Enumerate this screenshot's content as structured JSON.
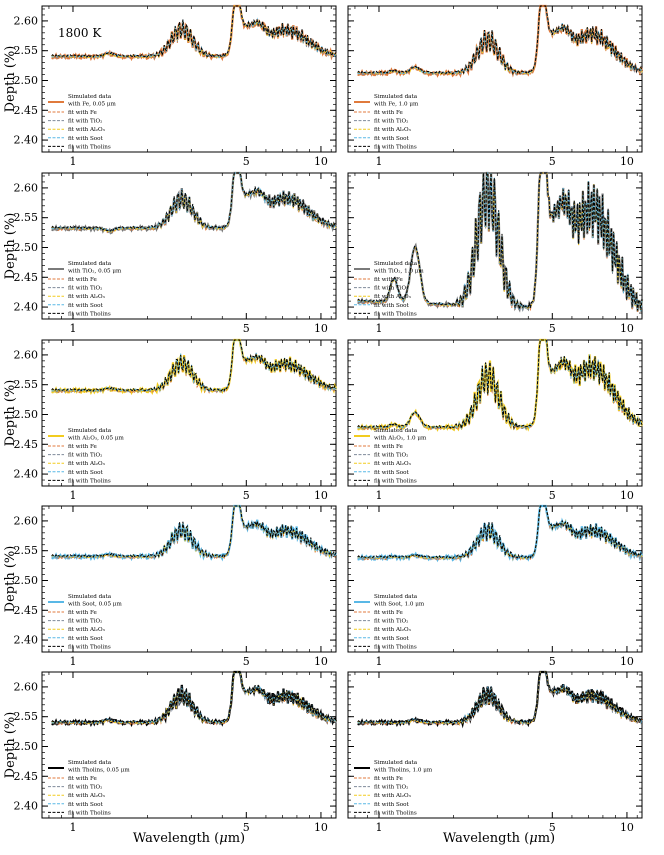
{
  "figure": {
    "annotation": "1800 K",
    "xlabel": "Wavelength (μm)",
    "ylabel": "Depth (%)",
    "x_ticks": [
      1,
      5,
      10
    ],
    "x_tick_labels": [
      "1",
      "5",
      "10"
    ],
    "y_ticks": [
      2.4,
      2.45,
      2.5,
      2.55,
      2.6
    ],
    "y_tick_labels": [
      "2.40",
      "2.45",
      "2.50",
      "2.55",
      "2.60"
    ],
    "xlim": [
      0.75,
      11.5
    ],
    "ylim": [
      2.38,
      2.625
    ],
    "xscale": "log"
  },
  "colors": {
    "fe": "#e07a3c",
    "tio2": "#7f8a9a",
    "al2o3": "#f2cc1f",
    "soot": "#59b8e6",
    "tholins": "#000000",
    "gray": "#7a7a7a"
  },
  "chart_data": [
    {
      "type": "line",
      "panel": "Fe 0.05 um",
      "legend_title": [
        "Simulated data",
        "with Fe, 0.05 μm"
      ],
      "data_color": "fe",
      "base_depth": 2.54,
      "features": [
        0.0,
        0.005,
        0.045,
        0.078,
        0.044
      ],
      "series_names": [
        "fit with Fe",
        "fit with TiO₂",
        "fit with Al₂O₃",
        "fit with Soot",
        "fit with Tholins"
      ]
    },
    {
      "type": "line",
      "panel": "Fe 1.0 um",
      "legend_title": [
        "Simulated data",
        "with Fe, 1.0 μm"
      ],
      "data_color": "fe",
      "base_depth": 2.512,
      "features": [
        0.004,
        0.01,
        0.055,
        0.1,
        0.065
      ],
      "series_names": [
        "fit with Fe",
        "fit with TiO₂",
        "fit with Al₂O₃",
        "fit with Soot",
        "fit with Tholins"
      ]
    },
    {
      "type": "line",
      "panel": "TiO2 0.05 um",
      "legend_title": [
        "Simulated data",
        "with TiO₂, 0.05 μm"
      ],
      "data_color": "gray",
      "base_depth": 2.532,
      "features": [
        0.0,
        -0.005,
        0.048,
        0.085,
        0.05
      ],
      "series_names": [
        "fit with Fe",
        "fit with TiO₂",
        "fit with Al₂O₃",
        "fit with Soot",
        "fit with Tholins"
      ]
    },
    {
      "type": "line",
      "panel": "TiO2 1.0 um",
      "legend_title": [
        "Simulated data",
        "with TiO₂, 1.0 μm"
      ],
      "data_color": "gray",
      "base_depth": 2.39,
      "features": [
        0.04,
        0.095,
        0.195,
        0.225,
        0.17
      ],
      "series_names": [
        "fit with Fe",
        "fit with TiO₂",
        "fit with Al₂O₃",
        "fit with Soot",
        "fit with Tholins"
      ]
    },
    {
      "type": "line",
      "panel": "Al2O3 0.05 um",
      "legend_title": [
        "Simulated data",
        "with Al₂O₃, 0.05 μm"
      ],
      "data_color": "al2o3",
      "base_depth": 2.54,
      "features": [
        0.0,
        0.003,
        0.045,
        0.077,
        0.044
      ],
      "series_names": [
        "fit with Fe",
        "fit with TiO₂",
        "fit with Al₂O₃",
        "fit with Soot",
        "fit with Tholins"
      ]
    },
    {
      "type": "line",
      "panel": "Al2O3 1.0 um",
      "legend_title": [
        "Simulated data",
        "with Al₂O₃, 1.0 μm"
      ],
      "data_color": "al2o3",
      "base_depth": 2.478,
      "features": [
        0.005,
        0.025,
        0.085,
        0.138,
        0.1
      ],
      "series_names": [
        "fit with Fe",
        "fit with TiO₂",
        "fit with Al₂O₃",
        "fit with Soot",
        "fit with Tholins"
      ]
    },
    {
      "type": "line",
      "panel": "Soot 0.05 um",
      "legend_title": [
        "Simulated data",
        "with Soot, 0.05 μm"
      ],
      "data_color": "soot",
      "base_depth": 2.54,
      "features": [
        0.0,
        0.003,
        0.043,
        0.075,
        0.043
      ],
      "series_names": [
        "fit with Fe",
        "fit with TiO₂",
        "fit with Al₂O₃",
        "fit with Soot",
        "fit with Tholins"
      ]
    },
    {
      "type": "line",
      "panel": "Soot 1.0 um",
      "legend_title": [
        "Simulated data",
        "with Soot, 1.0 μm"
      ],
      "data_color": "soot",
      "base_depth": 2.538,
      "features": [
        0.002,
        0.004,
        0.045,
        0.078,
        0.045
      ],
      "series_names": [
        "fit with Fe",
        "fit with TiO₂",
        "fit with Al₂O₃",
        "fit with Soot",
        "fit with Tholins"
      ]
    },
    {
      "type": "line",
      "panel": "Tholins 0.05 um",
      "legend_title": [
        "Simulated data",
        "with Tholins, 0.05 μm"
      ],
      "data_color": "tholins",
      "base_depth": 2.54,
      "features": [
        0.0,
        0.004,
        0.045,
        0.078,
        0.044
      ],
      "series_names": [
        "fit with Fe",
        "fit with TiO₂",
        "fit with Al₂O₃",
        "fit with Soot",
        "fit with Tholins"
      ]
    },
    {
      "type": "line",
      "panel": "Tholins 1.0 um",
      "legend_title": [
        "Simulated data",
        "with Tholins, 1.0 μm"
      ],
      "data_color": "tholins",
      "base_depth": 2.54,
      "features": [
        0.0,
        0.004,
        0.046,
        0.078,
        0.045
      ],
      "series_names": [
        "fit with Fe",
        "fit with TiO₂",
        "fit with Al₂O₃",
        "fit with Soot",
        "fit with Tholins"
      ]
    }
  ]
}
